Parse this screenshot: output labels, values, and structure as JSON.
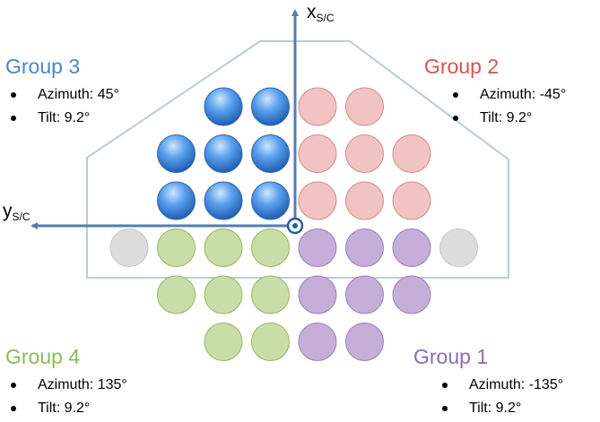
{
  "colors": {
    "group1": "#c6aed8",
    "group1_edge": "#9d80b4",
    "group1_text": "#8e6bb3",
    "group2": "#f2c3c3",
    "group2_edge": "#d08c8c",
    "group2_text": "#d9534f",
    "group3_text": "#4b86c6",
    "group4": "#c9dea6",
    "group4_edge": "#97b46a",
    "group4_text": "#8cba5a",
    "unused": "#dcdcdc",
    "axis": "#4f7fb3",
    "outline": "#bccadb"
  },
  "axes": {
    "x": {
      "main": "x",
      "sub": "S/C"
    },
    "y": {
      "main": "y",
      "sub": "S/C"
    },
    "origin_symbol": "out-of-page-dot-icon"
  },
  "groups": {
    "g3": {
      "title": "Group 3",
      "azimuth": "Azimuth: 45°",
      "tilt": "Tilt: 9.2°",
      "fill": "blue-gradient"
    },
    "g2": {
      "title": "Group 2",
      "azimuth": "Azimuth: -45°",
      "tilt": "Tilt: 9.2°",
      "fill": "pink"
    },
    "g4": {
      "title": "Group 4",
      "azimuth": "Azimuth: 135°",
      "tilt": "Tilt: 9.2°",
      "fill": "green"
    },
    "g1": {
      "title": "Group 1",
      "azimuth": "Azimuth: -135°",
      "tilt": "Tilt: 9.2°",
      "fill": "purple"
    }
  },
  "array": {
    "rows": [
      [
        "",
        "",
        "",
        "g3",
        "g3",
        "g2",
        "g2",
        "",
        "",
        ""
      ],
      [
        "",
        "",
        "g3",
        "g3",
        "g3",
        "g2",
        "g2",
        "g2",
        "",
        ""
      ],
      [
        "",
        "",
        "g3",
        "g3",
        "g3",
        "g2",
        "g2",
        "g2",
        "",
        ""
      ],
      [
        "",
        "u",
        "g4",
        "g4",
        "g4",
        "g1",
        "g1",
        "g1",
        "u",
        ""
      ],
      [
        "",
        "",
        "g4",
        "g4",
        "g4",
        "g1",
        "g1",
        "g1",
        "",
        ""
      ],
      [
        "",
        "",
        "",
        "g4",
        "g4",
        "g1",
        "g1",
        "",
        "",
        ""
      ]
    ]
  }
}
